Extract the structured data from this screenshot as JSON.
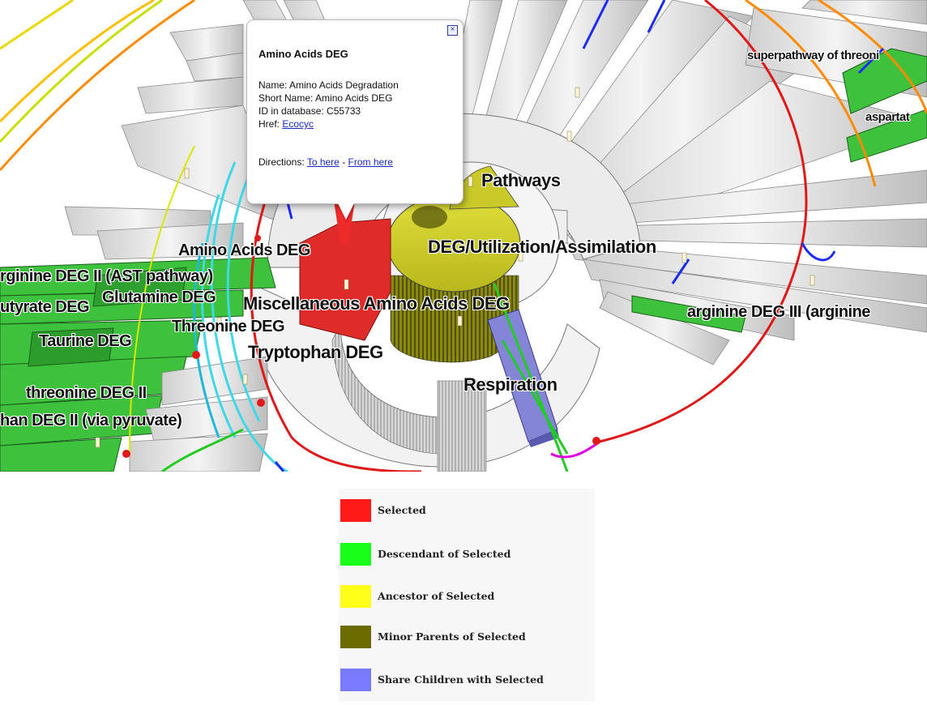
{
  "scene": {
    "labels": {
      "amino_acids_deg": "Amino Acids DEG",
      "pathways": "Pathways",
      "deg_utilization": "DEG/Utilization/Assimilation",
      "misc_amino_acids": "Miscellaneous Amino Acids DEG",
      "arginine_deg_ii": "rginine DEG II (AST pathway)",
      "butyrate_deg": "utyrate DEG",
      "glutamine_deg": "Glutamine DEG",
      "threonine_deg": "Threonine DEG",
      "taurine_deg": "Taurine DEG",
      "tryptophan_deg": "Tryptophan DEG",
      "threonine_deg_ii": "threonine DEG II",
      "tryptophan_deg_ii": "han DEG II (via pyruvate)",
      "respiration": "Respiration",
      "arginine_deg_iii": "arginine DEG III (arginine",
      "superpathway": "superpathway of threoni",
      "aspartate": "aspartat"
    }
  },
  "popup": {
    "close_icon": "close-box-icon",
    "title": "Amino Acids DEG",
    "name_line": "Name: Amino Acids Degradation",
    "short_name_line": "Short Name: Amino Acids DEG",
    "id_line": "ID in database: C55733",
    "href_label": "Href:",
    "href_link": "Ecocyc ",
    "directions_label": "Directions:",
    "to_here": "To here",
    "separator": "-",
    "from_here": "From here"
  },
  "legend": {
    "items": [
      {
        "label": "Selected",
        "color": "#ff1a1a"
      },
      {
        "label": "Descendant of Selected",
        "color": "#1aff1a"
      },
      {
        "label": "Ancestor of Selected",
        "color": "#ffff1a"
      },
      {
        "label": "Minor Parents of Selected",
        "color": "#6b6b00"
      },
      {
        "label": "Share Children with Selected",
        "color": "#7a7aff"
      }
    ]
  }
}
